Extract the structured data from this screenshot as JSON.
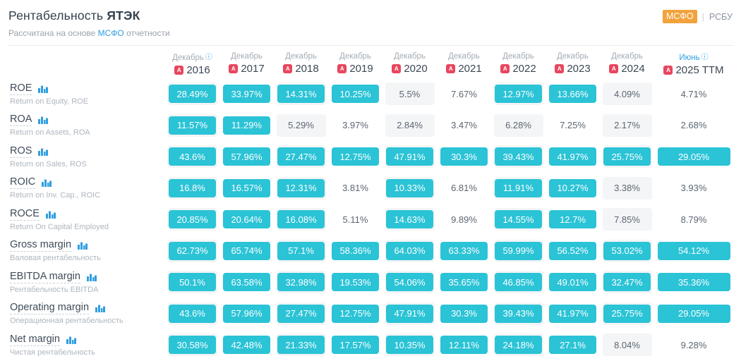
{
  "header": {
    "title_regular": "Рентабельность",
    "title_bold": "ЯТЭК",
    "subtitle_prefix": "Рассчитана на основе",
    "subtitle_link": "МСФО",
    "subtitle_suffix": "отчетности",
    "toggle": {
      "selected": "МСФО",
      "divider": "|",
      "other": "РСБУ"
    }
  },
  "icons": {
    "pdf_glyph": "A",
    "info_glyph": "ⓘ"
  },
  "colors": {
    "accent_cyan": "#2bc3d6",
    "accent_blue": "#2f9ee0",
    "accent_orange": "#f2a33c",
    "pdf_red": "#e8465e",
    "stripe_gray": "#f4f5f6"
  },
  "table": {
    "columns": [
      {
        "month": "Декабрь",
        "year": "2016",
        "info": true,
        "blue": false,
        "stripe": true,
        "wide": false
      },
      {
        "month": "Декабрь",
        "year": "2017",
        "info": false,
        "blue": false,
        "stripe": false,
        "wide": false
      },
      {
        "month": "Декабрь",
        "year": "2018",
        "info": false,
        "blue": false,
        "stripe": true,
        "wide": false
      },
      {
        "month": "Декабрь",
        "year": "2019",
        "info": false,
        "blue": false,
        "stripe": false,
        "wide": false
      },
      {
        "month": "Декабрь",
        "year": "2020",
        "info": false,
        "blue": false,
        "stripe": true,
        "wide": false
      },
      {
        "month": "Декабрь",
        "year": "2021",
        "info": false,
        "blue": false,
        "stripe": false,
        "wide": false
      },
      {
        "month": "Декабрь",
        "year": "2022",
        "info": false,
        "blue": false,
        "stripe": true,
        "wide": false
      },
      {
        "month": "Декабрь",
        "year": "2023",
        "info": false,
        "blue": false,
        "stripe": false,
        "wide": false
      },
      {
        "month": "Декабрь",
        "year": "2024",
        "info": false,
        "blue": false,
        "stripe": true,
        "wide": false
      },
      {
        "month": "Июнь",
        "year": "2025 TTM",
        "info": true,
        "blue": true,
        "stripe": false,
        "wide": true
      }
    ],
    "rows": [
      {
        "label": "ROE",
        "sublabel": "Return on Equity, ROE",
        "values": [
          "28.49%",
          "33.97%",
          "14.31%",
          "10.25%",
          "5.5%",
          "7.67%",
          "12.97%",
          "13.66%",
          "4.09%",
          "4.71%"
        ],
        "highlighted": [
          true,
          true,
          true,
          true,
          false,
          false,
          true,
          true,
          false,
          false
        ]
      },
      {
        "label": "ROA",
        "sublabel": "Return on Assets, ROA",
        "values": [
          "11.57%",
          "11.29%",
          "5.29%",
          "3.97%",
          "2.84%",
          "3.47%",
          "6.28%",
          "7.25%",
          "2.17%",
          "2.68%"
        ],
        "highlighted": [
          true,
          true,
          false,
          false,
          false,
          false,
          false,
          false,
          false,
          false
        ]
      },
      {
        "label": "ROS",
        "sublabel": "Return on Sales, ROS",
        "values": [
          "43.6%",
          "57.96%",
          "27.47%",
          "12.75%",
          "47.91%",
          "30.3%",
          "39.43%",
          "41.97%",
          "25.75%",
          "29.05%"
        ],
        "highlighted": [
          true,
          true,
          true,
          true,
          true,
          true,
          true,
          true,
          true,
          true
        ]
      },
      {
        "label": "ROIC",
        "sublabel": "Return on Inv. Cap., ROIC",
        "values": [
          "16.8%",
          "16.57%",
          "12.31%",
          "3.81%",
          "10.33%",
          "6.81%",
          "11.91%",
          "10.27%",
          "3.38%",
          "3.93%"
        ],
        "highlighted": [
          true,
          true,
          true,
          false,
          true,
          false,
          true,
          true,
          false,
          false
        ]
      },
      {
        "label": "ROCE",
        "sublabel": "Return On Capital Employed",
        "values": [
          "20.85%",
          "20.64%",
          "16.08%",
          "5.11%",
          "14.63%",
          "9.89%",
          "14.55%",
          "12.7%",
          "7.85%",
          "8.79%"
        ],
        "highlighted": [
          true,
          true,
          true,
          false,
          true,
          false,
          true,
          true,
          false,
          false
        ]
      },
      {
        "label": "Gross margin",
        "sublabel": "Валовая рентабельность",
        "values": [
          "62.73%",
          "65.74%",
          "57.1%",
          "58.36%",
          "64.03%",
          "63.33%",
          "59.99%",
          "56.52%",
          "53.02%",
          "54.12%"
        ],
        "highlighted": [
          true,
          true,
          true,
          true,
          true,
          true,
          true,
          true,
          true,
          true
        ]
      },
      {
        "label": "EBITDA margin",
        "sublabel": "Рентабельность EBITDA",
        "values": [
          "50.1%",
          "63.58%",
          "32.98%",
          "19.53%",
          "54.06%",
          "35.65%",
          "46.85%",
          "49.01%",
          "32.47%",
          "35.36%"
        ],
        "highlighted": [
          true,
          true,
          true,
          true,
          true,
          true,
          true,
          true,
          true,
          true
        ]
      },
      {
        "label": "Operating margin",
        "sublabel": "Операционная рентабельность",
        "values": [
          "43.6%",
          "57.96%",
          "27.47%",
          "12.75%",
          "47.91%",
          "30.3%",
          "39.43%",
          "41.97%",
          "25.75%",
          "29.05%"
        ],
        "highlighted": [
          true,
          true,
          true,
          true,
          true,
          true,
          true,
          true,
          true,
          true
        ]
      },
      {
        "label": "Net margin",
        "sublabel": "Чистая рентабельность",
        "values": [
          "30.58%",
          "42.48%",
          "21.33%",
          "17.57%",
          "10.35%",
          "12.11%",
          "24.18%",
          "27.1%",
          "8.04%",
          "9.28%"
        ],
        "highlighted": [
          true,
          true,
          true,
          true,
          true,
          true,
          true,
          true,
          false,
          false
        ]
      }
    ]
  }
}
